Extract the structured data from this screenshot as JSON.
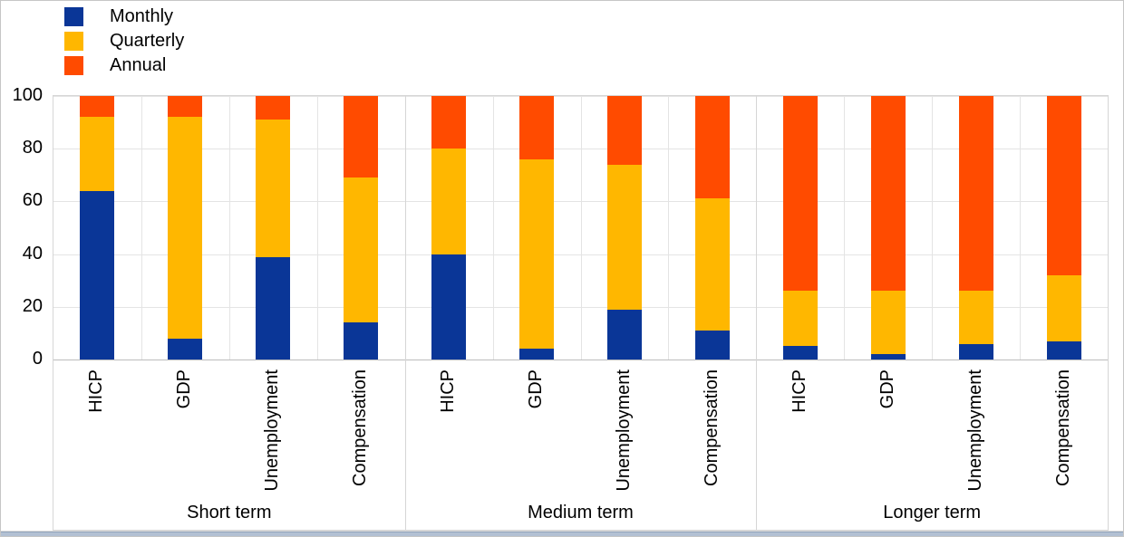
{
  "legend": {
    "items": [
      {
        "label": "Monthly",
        "color": "#0a3697"
      },
      {
        "label": "Quarterly",
        "color": "#ffb700"
      },
      {
        "label": "Annual",
        "color": "#ff4b00"
      }
    ]
  },
  "chart_data": {
    "type": "bar",
    "stacked": true,
    "title": "",
    "xlabel": "",
    "ylabel": "",
    "unit": "%",
    "ylim": [
      0,
      100
    ],
    "yticks": [
      0,
      20,
      40,
      60,
      80,
      100
    ],
    "grid": true,
    "legend_position": "top-left",
    "group_labels": [
      "Short term",
      "Medium term",
      "Longer term"
    ],
    "categories": [
      "HICP",
      "GDP",
      "Unemployment",
      "Compensation"
    ],
    "series": [
      {
        "name": "Monthly",
        "color": "#0a3697",
        "values": {
          "Short term": [
            64,
            8,
            39,
            14
          ],
          "Medium term": [
            40,
            4,
            19,
            11
          ],
          "Longer term": [
            5,
            2,
            6,
            7
          ]
        }
      },
      {
        "name": "Quarterly",
        "color": "#ffb700",
        "values": {
          "Short term": [
            28,
            84,
            52,
            55
          ],
          "Medium term": [
            40,
            72,
            55,
            50
          ],
          "Longer term": [
            21,
            24,
            20,
            25
          ]
        }
      },
      {
        "name": "Annual",
        "color": "#ff4b00",
        "values": {
          "Short term": [
            8,
            8,
            9,
            31
          ],
          "Medium term": [
            20,
            24,
            26,
            39
          ],
          "Longer term": [
            74,
            74,
            74,
            68
          ]
        }
      }
    ]
  }
}
